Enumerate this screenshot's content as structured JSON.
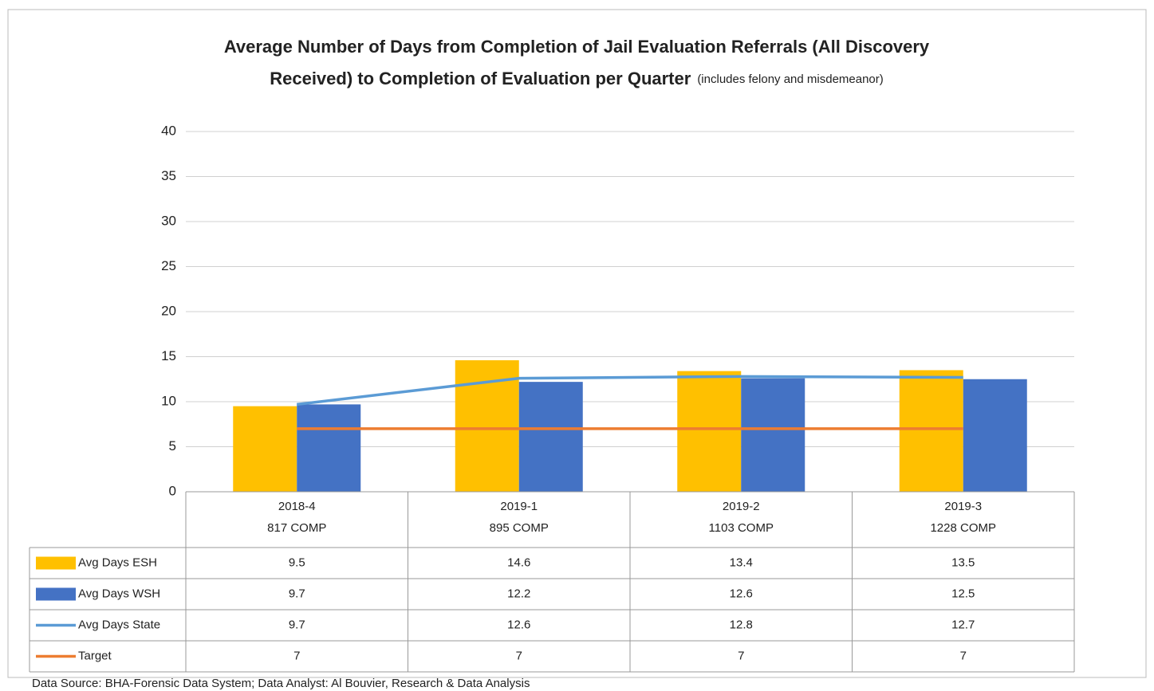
{
  "chart_data": {
    "type": "bar_line_table",
    "title": [
      "Average Number of Days from Completion of Jail Evaluation Referrals (All Discovery",
      "Received) to Completion of Evaluation per Quarter"
    ],
    "subtitle": "(includes felony and misdemeanor)",
    "categories": [
      [
        "2018-4",
        "817 COMP"
      ],
      [
        "2019-1",
        "895 COMP"
      ],
      [
        "2019-2",
        "1103 COMP"
      ],
      [
        "2019-3",
        "1228 COMP"
      ]
    ],
    "series": [
      {
        "name": "Avg Days ESH",
        "kind": "bar",
        "color": "#ffc000",
        "values": [
          9.5,
          14.6,
          13.4,
          13.5
        ]
      },
      {
        "name": "Avg Days WSH",
        "kind": "bar",
        "color": "#4472c4",
        "values": [
          9.7,
          12.2,
          12.6,
          12.5
        ]
      },
      {
        "name": "Avg Days State",
        "kind": "line",
        "color": "#5b9bd5",
        "values": [
          9.7,
          12.6,
          12.8,
          12.7
        ]
      },
      {
        "name": "Target",
        "kind": "line",
        "color": "#ed7d31",
        "values": [
          7,
          7,
          7,
          7
        ]
      }
    ],
    "ylim": [
      0,
      40
    ],
    "yticks": [
      0,
      5,
      10,
      15,
      20,
      25,
      30,
      35,
      40
    ],
    "grid": true,
    "source": "Data Source: BHA-Forensic Data System; Data Analyst: Al Bouvier, Research & Data Analysis"
  }
}
